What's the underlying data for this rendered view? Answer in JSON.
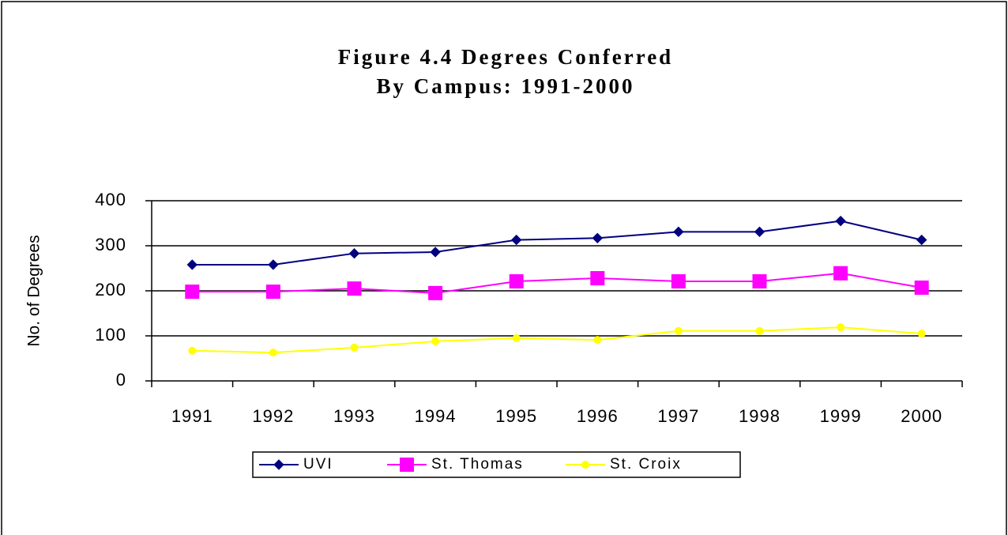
{
  "chart_data": {
    "type": "line",
    "title": [
      "Figure 4.4 Degrees Conferred",
      "By Campus: 1991-2000"
    ],
    "y_label": "No. of Degrees",
    "categories": [
      "1991",
      "1992",
      "1993",
      "1994",
      "1995",
      "1996",
      "1997",
      "1998",
      "1999",
      "2000"
    ],
    "series": [
      {
        "name": "UVI",
        "color": "#000080",
        "marker": "diamond",
        "values": [
          258,
          258,
          283,
          286,
          313,
          317,
          331,
          331,
          355,
          313
        ]
      },
      {
        "name": "St. Thomas",
        "color": "#ff00ff",
        "marker": "square",
        "values": [
          198,
          198,
          205,
          195,
          221,
          228,
          221,
          221,
          239,
          207
        ]
      },
      {
        "name": "St. Croix",
        "color": "#ffff00",
        "marker": "circle",
        "values": [
          67,
          63,
          74,
          88,
          95,
          91,
          111,
          111,
          119,
          105
        ]
      }
    ],
    "ylim": [
      0,
      400
    ],
    "yticks": [
      0,
      100,
      200,
      300,
      400
    ],
    "grid": true,
    "legend": "bottom"
  }
}
